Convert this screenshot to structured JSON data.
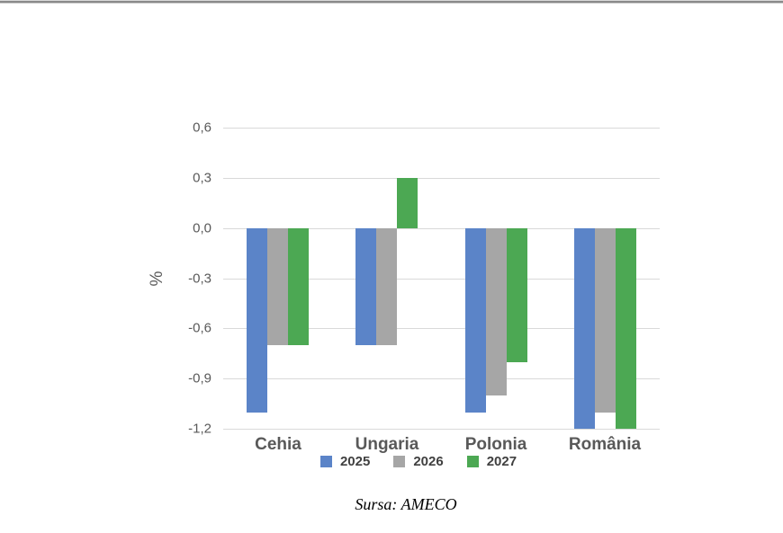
{
  "chart_data": {
    "type": "bar",
    "title": "",
    "categories": [
      "Cehia",
      "Ungaria",
      "Polonia",
      "România"
    ],
    "series": [
      {
        "name": "2025",
        "color": "#5B84C8",
        "values": [
          -1.1,
          -0.7,
          -1.1,
          -1.2
        ]
      },
      {
        "name": "2026",
        "color": "#A6A6A6",
        "values": [
          -0.7,
          -0.7,
          -1.0,
          -1.1
        ]
      },
      {
        "name": "2027",
        "color": "#4CA853",
        "values": [
          -0.7,
          0.3,
          -0.8,
          -1.2
        ]
      }
    ],
    "xlabel": "",
    "ylabel": "%",
    "ylim": [
      -1.2,
      0.6
    ],
    "yticks": [
      0.6,
      0.3,
      0.0,
      -0.3,
      -0.6,
      -0.9,
      -1.2
    ],
    "ytick_labels": [
      "0,6",
      "0,3",
      "0,0",
      "-0,3",
      "-0,6",
      "-0,9",
      "-1,2"
    ],
    "grid": true,
    "gridline_color": "#d9d9d9",
    "legend_position": "bottom",
    "source": "Sursa: AMECO",
    "text_color": "#595959"
  }
}
